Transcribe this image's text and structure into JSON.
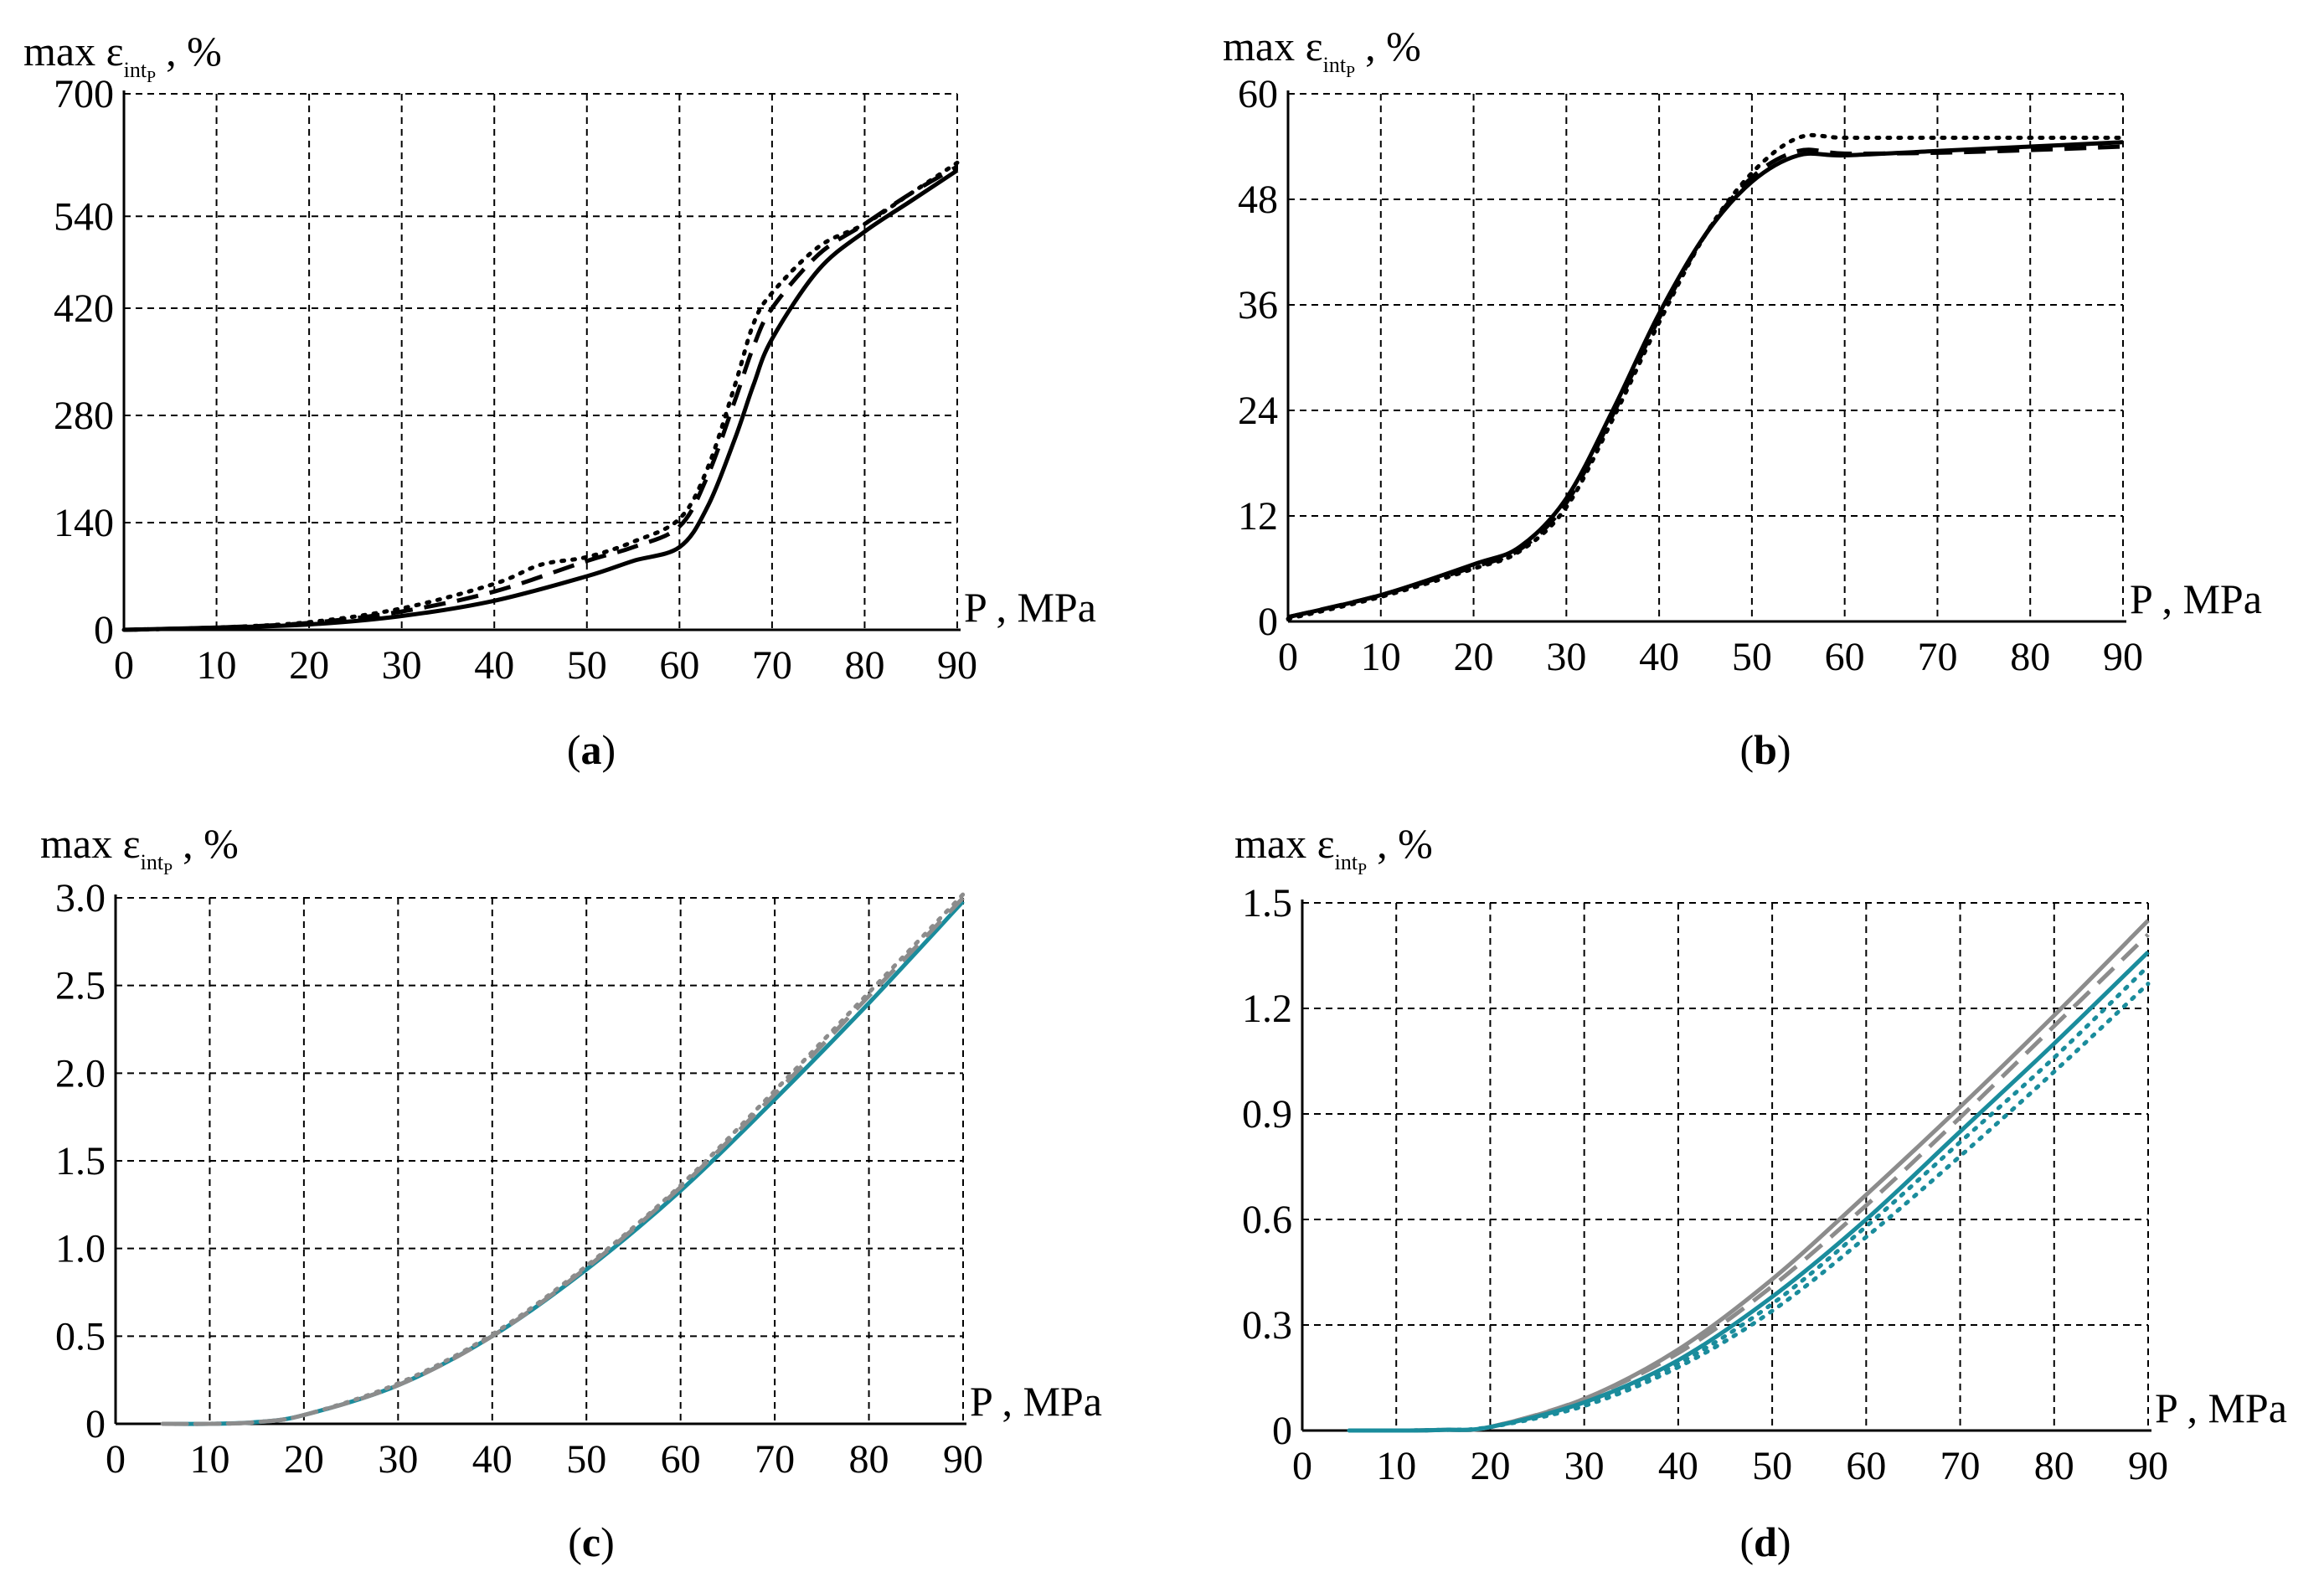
{
  "colors": {
    "black": "#000000",
    "gray": "#8c8c8c",
    "teal": "#1a8c9c"
  },
  "chart_data": [
    {
      "id": "a",
      "type": "line",
      "caption_letter": "a",
      "ylabel_main": "max ε",
      "ylabel_sub": "int",
      "ylabel_subsub": "P",
      "ylabel_unit": ", %",
      "xlabel": "P , MPa",
      "xlim": [
        0,
        90
      ],
      "ylim": [
        0,
        700
      ],
      "xticks": [
        0,
        10,
        20,
        30,
        40,
        50,
        60,
        70,
        80,
        90
      ],
      "yticks": [
        0,
        140,
        280,
        420,
        540,
        700
      ],
      "grid": true,
      "series": [
        {
          "name": "solid",
          "color": "#000000",
          "dash": "solid",
          "x": [
            0,
            10,
            20,
            30,
            40,
            50,
            55,
            60,
            63,
            66,
            68,
            70,
            75,
            80,
            85,
            90
          ],
          "y": [
            0,
            3,
            7,
            18,
            38,
            70,
            90,
            108,
            160,
            250,
            320,
            380,
            470,
            520,
            560,
            600
          ]
        },
        {
          "name": "dashed",
          "color": "#000000",
          "dash": "dashed",
          "x": [
            0,
            10,
            20,
            30,
            40,
            50,
            55,
            60,
            63,
            66,
            68,
            70,
            75,
            80,
            85,
            90
          ],
          "y": [
            0,
            3,
            9,
            24,
            50,
            90,
            108,
            135,
            200,
            300,
            370,
            420,
            490,
            530,
            570,
            605
          ]
        },
        {
          "name": "dotted",
          "color": "#000000",
          "dash": "dotted",
          "x": [
            0,
            10,
            20,
            30,
            40,
            45,
            50,
            55,
            60,
            63,
            66,
            68,
            70,
            75,
            80,
            85,
            90
          ],
          "y": [
            0,
            3,
            10,
            28,
            60,
            85,
            95,
            115,
            145,
            210,
            320,
            400,
            440,
            500,
            530,
            570,
            610
          ]
        }
      ]
    },
    {
      "id": "b",
      "type": "line",
      "caption_letter": "b",
      "ylabel_main": "max ε",
      "ylabel_sub": "int",
      "ylabel_subsub": "P",
      "ylabel_unit": ", %",
      "xlabel": "P , MPa",
      "xlim": [
        0,
        90
      ],
      "ylim": [
        0,
        60
      ],
      "xticks": [
        0,
        10,
        20,
        30,
        40,
        50,
        60,
        70,
        80,
        90
      ],
      "yticks": [
        0,
        12,
        24,
        36,
        48,
        60
      ],
      "grid": true,
      "series": [
        {
          "name": "solid",
          "color": "#000000",
          "dash": "solid",
          "x": [
            0,
            10,
            20,
            25,
            30,
            35,
            40,
            45,
            50,
            55,
            60,
            70,
            80,
            90
          ],
          "y": [
            0.5,
            3,
            6.5,
            8.5,
            14,
            24,
            35,
            44,
            50,
            53,
            53,
            53.5,
            54,
            54.5
          ]
        },
        {
          "name": "dashed",
          "color": "#000000",
          "dash": "dashed",
          "x": [
            0,
            10,
            20,
            25,
            30,
            35,
            40,
            45,
            50,
            55,
            60,
            70,
            80,
            90
          ],
          "y": [
            0.5,
            3,
            6.2,
            8.2,
            13.5,
            23.5,
            34.5,
            44,
            50.5,
            53.5,
            53.2,
            53.3,
            53.6,
            54
          ]
        },
        {
          "name": "dotted",
          "color": "#000000",
          "dash": "dotted",
          "x": [
            0,
            10,
            20,
            25,
            30,
            35,
            40,
            45,
            50,
            55,
            60,
            70,
            80,
            90
          ],
          "y": [
            0.3,
            2.8,
            6,
            8,
            13,
            23,
            34,
            44,
            51,
            55,
            55,
            55,
            55,
            55
          ]
        }
      ]
    },
    {
      "id": "c",
      "type": "line",
      "caption_letter": "c",
      "ylabel_main": "max ε",
      "ylabel_sub": "int",
      "ylabel_subsub": "P",
      "ylabel_unit": ", %",
      "xlabel": "P , MPa",
      "xlim": [
        0,
        90
      ],
      "ylim": [
        0,
        3.0
      ],
      "xticks": [
        0,
        10,
        20,
        30,
        40,
        50,
        60,
        70,
        80,
        90
      ],
      "yticks": [
        0,
        0.5,
        1.0,
        1.5,
        2.0,
        2.5,
        3.0
      ],
      "ytick_labels": [
        "0",
        "0.5",
        "1.0",
        "1.5",
        "2.0",
        "2.5",
        "3.0"
      ],
      "grid": true,
      "series": [
        {
          "name": "teal-solid",
          "color": "#1a8c9c",
          "dash": "solid",
          "x": [
            5,
            10,
            15,
            20,
            30,
            40,
            50,
            60,
            70,
            80,
            90
          ],
          "y": [
            0,
            0,
            0.01,
            0.05,
            0.22,
            0.5,
            0.88,
            1.33,
            1.85,
            2.4,
            2.98
          ]
        },
        {
          "name": "gray-dashed",
          "color": "#8c8c8c",
          "dash": "dashed",
          "x": [
            5,
            10,
            15,
            20,
            30,
            40,
            50,
            60,
            70,
            80,
            90
          ],
          "y": [
            0,
            0,
            0.01,
            0.05,
            0.22,
            0.5,
            0.89,
            1.35,
            1.88,
            2.44,
            3.0
          ]
        },
        {
          "name": "gray-dotted",
          "color": "#8c8c8c",
          "dash": "dotted",
          "x": [
            5,
            10,
            15,
            20,
            30,
            40,
            50,
            60,
            70,
            80,
            90
          ],
          "y": [
            0,
            0,
            0.01,
            0.05,
            0.23,
            0.51,
            0.9,
            1.36,
            1.9,
            2.46,
            3.02
          ]
        }
      ]
    },
    {
      "id": "d",
      "type": "line",
      "caption_letter": "d",
      "ylabel_main": "max ε",
      "ylabel_sub": "int",
      "ylabel_subsub": "P",
      "ylabel_unit": ", %",
      "xlabel": "P , MPa",
      "xlim": [
        0,
        90
      ],
      "ylim": [
        0,
        1.5
      ],
      "xticks": [
        0,
        10,
        20,
        30,
        40,
        50,
        60,
        70,
        80,
        90
      ],
      "yticks": [
        0,
        0.3,
        0.6,
        0.9,
        1.2,
        1.5
      ],
      "ytick_labels": [
        "0",
        "0.3",
        "0.6",
        "0.9",
        "1.2",
        "1.5"
      ],
      "grid": true,
      "series": [
        {
          "name": "gray-solid",
          "color": "#8c8c8c",
          "dash": "solid",
          "x": [
            5,
            10,
            15,
            20,
            30,
            40,
            50,
            60,
            70,
            80,
            90
          ],
          "y": [
            0,
            0,
            0.002,
            0.01,
            0.09,
            0.23,
            0.43,
            0.67,
            0.92,
            1.18,
            1.45
          ]
        },
        {
          "name": "gray-dashed",
          "color": "#8c8c8c",
          "dash": "dashed",
          "x": [
            5,
            10,
            15,
            20,
            30,
            40,
            50,
            60,
            70,
            80,
            90
          ],
          "y": [
            0,
            0,
            0.002,
            0.01,
            0.09,
            0.22,
            0.41,
            0.64,
            0.89,
            1.15,
            1.41
          ]
        },
        {
          "name": "teal-solid",
          "color": "#1a8c9c",
          "dash": "solid",
          "x": [
            5,
            10,
            15,
            20,
            30,
            40,
            50,
            60,
            70,
            80,
            90
          ],
          "y": [
            0,
            0,
            0.002,
            0.01,
            0.08,
            0.2,
            0.38,
            0.6,
            0.85,
            1.1,
            1.36
          ]
        },
        {
          "name": "teal-dotted-1",
          "color": "#1a8c9c",
          "dash": "dotted",
          "x": [
            5,
            10,
            15,
            20,
            30,
            40,
            50,
            60,
            70,
            80,
            90
          ],
          "y": [
            0,
            0,
            0.002,
            0.01,
            0.075,
            0.19,
            0.36,
            0.58,
            0.82,
            1.06,
            1.32
          ]
        },
        {
          "name": "teal-dotted-2",
          "color": "#1a8c9c",
          "dash": "dotted",
          "x": [
            5,
            10,
            15,
            20,
            30,
            40,
            50,
            60,
            70,
            80,
            90
          ],
          "y": [
            0,
            0,
            0.002,
            0.01,
            0.07,
            0.18,
            0.34,
            0.55,
            0.78,
            1.02,
            1.27
          ]
        }
      ]
    }
  ]
}
